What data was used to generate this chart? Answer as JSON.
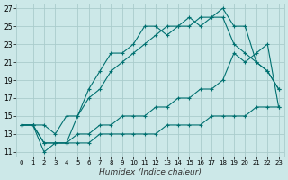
{
  "xlabel": "Humidex (Indice chaleur)",
  "bg_color": "#cce8e8",
  "grid_color": "#aacccc",
  "line_color": "#007070",
  "xlim": [
    -0.5,
    23.5
  ],
  "ylim": [
    10.5,
    27.5
  ],
  "xticks": [
    0,
    1,
    2,
    3,
    4,
    5,
    6,
    7,
    8,
    9,
    10,
    11,
    12,
    13,
    14,
    15,
    16,
    17,
    18,
    19,
    20,
    21,
    22,
    23
  ],
  "yticks": [
    11,
    13,
    15,
    17,
    19,
    21,
    23,
    25,
    27
  ],
  "series1_x": [
    0,
    1,
    2,
    3,
    4,
    5,
    6,
    7,
    8,
    9,
    10,
    11,
    12,
    13,
    14,
    15,
    16,
    17,
    18,
    19,
    20,
    21,
    22,
    23
  ],
  "series1_y": [
    14,
    14,
    14,
    13,
    15,
    15,
    18,
    20,
    22,
    22,
    23,
    25,
    25,
    24,
    25,
    26,
    25,
    26,
    27,
    25,
    25,
    21,
    20,
    18
  ],
  "series2_x": [
    0,
    1,
    2,
    3,
    4,
    5,
    6,
    7,
    8,
    9,
    10,
    11,
    12,
    13,
    14,
    15,
    16,
    17,
    18,
    19,
    20,
    21,
    22,
    23
  ],
  "series2_y": [
    14,
    14,
    11,
    12,
    12,
    15,
    17,
    18,
    20,
    21,
    22,
    23,
    24,
    25,
    25,
    25,
    26,
    26,
    26,
    23,
    22,
    21,
    20,
    18
  ],
  "series3_x": [
    0,
    1,
    2,
    3,
    4,
    5,
    6,
    7,
    8,
    9,
    10,
    11,
    12,
    13,
    14,
    15,
    16,
    17,
    18,
    19,
    20,
    21,
    22,
    23
  ],
  "series3_y": [
    14,
    14,
    12,
    12,
    12,
    13,
    13,
    14,
    14,
    15,
    15,
    15,
    16,
    16,
    17,
    17,
    18,
    18,
    19,
    22,
    21,
    22,
    23,
    16
  ],
  "series4_x": [
    0,
    1,
    2,
    3,
    4,
    5,
    6,
    7,
    8,
    9,
    10,
    11,
    12,
    13,
    14,
    15,
    16,
    17,
    18,
    19,
    20,
    21,
    22,
    23
  ],
  "series4_y": [
    14,
    14,
    12,
    12,
    12,
    12,
    12,
    13,
    13,
    13,
    13,
    13,
    13,
    14,
    14,
    14,
    14,
    15,
    15,
    15,
    15,
    16,
    16,
    16
  ]
}
